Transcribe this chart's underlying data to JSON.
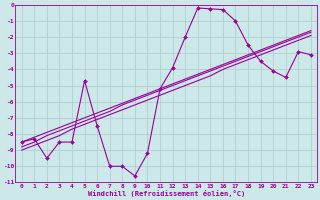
{
  "xlabel": "Windchill (Refroidissement éolien,°C)",
  "background_color": "#cce8e8",
  "grid_color": "#aacccc",
  "line_color": "#990099",
  "x_data": [
    0,
    1,
    2,
    3,
    4,
    5,
    6,
    7,
    8,
    9,
    10,
    11,
    12,
    13,
    14,
    15,
    16,
    17,
    18,
    19,
    20,
    21,
    22,
    23
  ],
  "y_main": [
    -8.5,
    -8.3,
    -9.5,
    -8.5,
    -8.5,
    -4.7,
    -7.5,
    -10.0,
    -10.0,
    -10.6,
    -9.2,
    -5.2,
    -3.9,
    -2.0,
    -0.2,
    -0.25,
    -0.3,
    -1.0,
    -2.5,
    -3.5,
    -4.1,
    -4.5,
    -2.9,
    -3.1
  ],
  "y_reg1": [
    -8.5,
    -8.2,
    -7.9,
    -7.6,
    -7.3,
    -7.0,
    -6.7,
    -6.4,
    -6.1,
    -5.8,
    -5.5,
    -5.2,
    -4.9,
    -4.6,
    -4.3,
    -4.0,
    -3.7,
    -3.4,
    -3.1,
    -2.8,
    -2.5,
    -2.2,
    -1.9,
    -1.6
  ],
  "y_reg2": [
    -8.8,
    -8.5,
    -8.1,
    -7.8,
    -7.5,
    -7.2,
    -6.9,
    -6.6,
    -6.2,
    -5.9,
    -5.6,
    -5.3,
    -5.0,
    -4.7,
    -4.4,
    -4.1,
    -3.8,
    -3.5,
    -3.2,
    -2.9,
    -2.6,
    -2.3,
    -2.0,
    -1.7
  ],
  "y_reg3": [
    -9.0,
    -8.7,
    -8.4,
    -8.1,
    -7.7,
    -7.4,
    -7.1,
    -6.8,
    -6.5,
    -6.2,
    -5.9,
    -5.6,
    -5.3,
    -5.0,
    -4.7,
    -4.4,
    -4.0,
    -3.7,
    -3.4,
    -3.1,
    -2.8,
    -2.5,
    -2.2,
    -1.9
  ],
  "ylim": [
    -11,
    0
  ],
  "xlim": [
    -0.5,
    23.5
  ],
  "yticks": [
    0,
    -1,
    -2,
    -3,
    -4,
    -5,
    -6,
    -7,
    -8,
    -9,
    -10,
    -11
  ],
  "xticks": [
    0,
    1,
    2,
    3,
    4,
    5,
    6,
    7,
    8,
    9,
    10,
    11,
    12,
    13,
    14,
    15,
    16,
    17,
    18,
    19,
    20,
    21,
    22,
    23
  ]
}
